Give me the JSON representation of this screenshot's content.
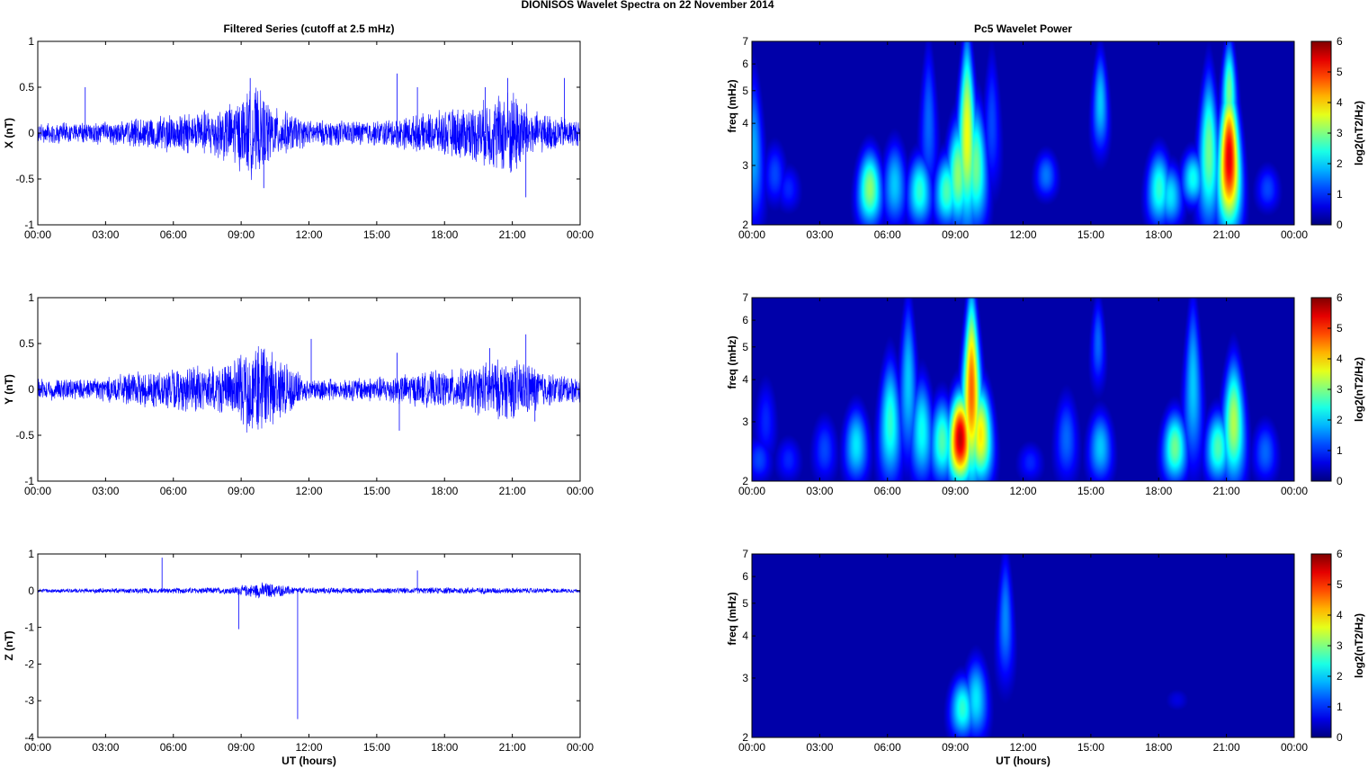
{
  "figure": {
    "title": "DIONISOS Wavelet Spectra on 22 November  2014"
  },
  "colors": {
    "trace": "#0000ff",
    "background": "#00008f",
    "axis": "#000000"
  },
  "chart_data": [
    {
      "type": "line",
      "title": "Filtered Series (cutoff at 2.5 mHz)",
      "xlabel": "",
      "ylabel": "X (nT)",
      "xlim": [
        "00:00",
        "24:00"
      ],
      "ylim": [
        -1,
        1
      ],
      "x_ticks": [
        "00:00",
        "03:00",
        "06:00",
        "09:00",
        "12:00",
        "15:00",
        "18:00",
        "21:00",
        "00:00"
      ],
      "y_ticks": [
        "1",
        "0.5",
        "0",
        "-0.5",
        "-1"
      ],
      "series": [
        {
          "x_unit": "UT hours",
          "baseline_amplitude": 0.1,
          "envelope": [
            {
              "t": 0,
              "amp": 0.12
            },
            {
              "t": 2,
              "amp": 0.12
            },
            {
              "t": 4,
              "amp": 0.15
            },
            {
              "t": 5.5,
              "amp": 0.22
            },
            {
              "t": 7,
              "amp": 0.25
            },
            {
              "t": 8.5,
              "amp": 0.35
            },
            {
              "t": 9.6,
              "amp": 0.55
            },
            {
              "t": 10.5,
              "amp": 0.3
            },
            {
              "t": 12,
              "amp": 0.15
            },
            {
              "t": 15,
              "amp": 0.15
            },
            {
              "t": 17,
              "amp": 0.22
            },
            {
              "t": 19.5,
              "amp": 0.35
            },
            {
              "t": 21,
              "amp": 0.55
            },
            {
              "t": 22,
              "amp": 0.25
            },
            {
              "t": 24,
              "amp": 0.15
            }
          ],
          "spikes": [
            {
              "t": 2.1,
              "y": 0.5
            },
            {
              "t": 9.4,
              "y": 0.6
            },
            {
              "t": 15.9,
              "y": 0.65
            },
            {
              "t": 16.8,
              "y": 0.5
            },
            {
              "t": 19.8,
              "y": 0.5
            },
            {
              "t": 21.6,
              "y": -0.7
            },
            {
              "t": 23.3,
              "y": 0.6
            },
            {
              "t": 10.0,
              "y": -0.6
            },
            {
              "t": 20.8,
              "y": 0.6
            }
          ]
        }
      ]
    },
    {
      "type": "heatmap",
      "title": "Pc5 Wavelet Power",
      "xlabel": "",
      "ylabel": "freq (mHz)",
      "xlim": [
        "00:00",
        "24:00"
      ],
      "ylim": [
        2,
        7
      ],
      "y_scale": "log",
      "x_ticks": [
        "00:00",
        "03:00",
        "06:00",
        "09:00",
        "12:00",
        "15:00",
        "18:00",
        "21:00",
        "00:00"
      ],
      "y_ticks": [
        "7",
        "6",
        "5",
        "4",
        "3",
        "2"
      ],
      "colorbar": {
        "label": "log2(nT2/Hz)",
        "range": [
          0,
          6
        ],
        "ticks": [
          "6",
          "5",
          "4",
          "3",
          "2",
          "1",
          "0"
        ]
      },
      "power_blobs": [
        {
          "t": 0.05,
          "f_bottom": 2,
          "f_top": 5.5,
          "power": 1.8
        },
        {
          "t": 1.0,
          "f_bottom": 2.3,
          "f_top": 3.5,
          "power": 1.2
        },
        {
          "t": 1.6,
          "f_bottom": 2.2,
          "f_top": 3.0,
          "power": 1.0
        },
        {
          "t": 5.2,
          "f_bottom": 2,
          "f_top": 3.3,
          "power": 3.2
        },
        {
          "t": 6.3,
          "f_bottom": 2,
          "f_top": 3.5,
          "power": 2.0
        },
        {
          "t": 7.4,
          "f_bottom": 2,
          "f_top": 3.2,
          "power": 2.6
        },
        {
          "t": 7.8,
          "f_bottom": 2.4,
          "f_top": 6.8,
          "power": 1.4
        },
        {
          "t": 8.6,
          "f_bottom": 2,
          "f_top": 3.2,
          "power": 2.8
        },
        {
          "t": 9.1,
          "f_bottom": 2,
          "f_top": 4.0,
          "power": 3.2
        },
        {
          "t": 9.5,
          "f_bottom": 2,
          "f_top": 7.0,
          "power": 3.8
        },
        {
          "t": 9.9,
          "f_bottom": 2,
          "f_top": 4.5,
          "power": 3.0
        },
        {
          "t": 10.6,
          "f_bottom": 2.5,
          "f_top": 6.5,
          "power": 1.2
        },
        {
          "t": 13.0,
          "f_bottom": 2.4,
          "f_top": 3.3,
          "power": 1.5
        },
        {
          "t": 15.4,
          "f_bottom": 3.3,
          "f_top": 6.5,
          "power": 2.0
        },
        {
          "t": 18.0,
          "f_bottom": 2,
          "f_top": 3.3,
          "power": 2.6
        },
        {
          "t": 18.5,
          "f_bottom": 2,
          "f_top": 3.0,
          "power": 2.2
        },
        {
          "t": 19.5,
          "f_bottom": 2.3,
          "f_top": 3.3,
          "power": 2.4
        },
        {
          "t": 20.2,
          "f_bottom": 2,
          "f_top": 5.5,
          "power": 3.0
        },
        {
          "t": 21.1,
          "f_bottom": 2,
          "f_top": 5.0,
          "power": 5.6
        },
        {
          "t": 21.1,
          "f_bottom": 3.5,
          "f_top": 7.0,
          "power": 3.0
        },
        {
          "t": 22.8,
          "f_bottom": 2.2,
          "f_top": 3.0,
          "power": 1.2
        }
      ]
    },
    {
      "type": "line",
      "title": "",
      "xlabel": "",
      "ylabel": "Y (nT)",
      "xlim": [
        "00:00",
        "24:00"
      ],
      "ylim": [
        -1,
        1
      ],
      "x_ticks": [
        "00:00",
        "03:00",
        "06:00",
        "09:00",
        "12:00",
        "15:00",
        "18:00",
        "21:00",
        "00:00"
      ],
      "y_ticks": [
        "1",
        "0.5",
        "0",
        "-0.5",
        "-1"
      ],
      "series": [
        {
          "x_unit": "UT hours",
          "baseline_amplitude": 0.1,
          "envelope": [
            {
              "t": 0,
              "amp": 0.12
            },
            {
              "t": 3,
              "amp": 0.15
            },
            {
              "t": 5,
              "amp": 0.22
            },
            {
              "t": 7,
              "amp": 0.28
            },
            {
              "t": 8.5,
              "amp": 0.3
            },
            {
              "t": 9.8,
              "amp": 0.62
            },
            {
              "t": 11,
              "amp": 0.3
            },
            {
              "t": 12,
              "amp": 0.12
            },
            {
              "t": 15,
              "amp": 0.15
            },
            {
              "t": 17,
              "amp": 0.2
            },
            {
              "t": 19,
              "amp": 0.25
            },
            {
              "t": 20,
              "amp": 0.35
            },
            {
              "t": 21.5,
              "amp": 0.35
            },
            {
              "t": 22.5,
              "amp": 0.2
            },
            {
              "t": 24,
              "amp": 0.15
            }
          ],
          "spikes": [
            {
              "t": 15.9,
              "y": 0.4
            },
            {
              "t": 16.0,
              "y": -0.45
            },
            {
              "t": 12.1,
              "y": 0.55
            },
            {
              "t": 20.0,
              "y": 0.45
            },
            {
              "t": 21.6,
              "y": 0.6
            },
            {
              "t": 22.0,
              "y": -0.35
            }
          ]
        }
      ]
    },
    {
      "type": "heatmap",
      "title": "",
      "xlabel": "",
      "ylabel": "freq (mHz)",
      "xlim": [
        "00:00",
        "24:00"
      ],
      "ylim": [
        2,
        7
      ],
      "y_scale": "log",
      "x_ticks": [
        "00:00",
        "03:00",
        "06:00",
        "09:00",
        "12:00",
        "15:00",
        "18:00",
        "21:00",
        "00:00"
      ],
      "y_ticks": [
        "7",
        "6",
        "5",
        "4",
        "3",
        "2"
      ],
      "colorbar": {
        "label": "log2(nT2/Hz)",
        "range": [
          0,
          6
        ],
        "ticks": [
          "6",
          "5",
          "4",
          "3",
          "2",
          "1",
          "0"
        ]
      },
      "power_blobs": [
        {
          "t": 0.3,
          "f_bottom": 2,
          "f_top": 2.7,
          "power": 1.2
        },
        {
          "t": 0.6,
          "f_bottom": 2.3,
          "f_top": 4.0,
          "power": 1.0
        },
        {
          "t": 1.6,
          "f_bottom": 2,
          "f_top": 2.7,
          "power": 1.0
        },
        {
          "t": 3.2,
          "f_bottom": 2,
          "f_top": 3.1,
          "power": 1.2
        },
        {
          "t": 4.6,
          "f_bottom": 2,
          "f_top": 3.3,
          "power": 2.2
        },
        {
          "t": 6.1,
          "f_bottom": 2,
          "f_top": 4.5,
          "power": 2.6
        },
        {
          "t": 6.9,
          "f_bottom": 2.3,
          "f_top": 6.8,
          "power": 2.0
        },
        {
          "t": 7.5,
          "f_bottom": 2,
          "f_top": 4.0,
          "power": 2.4
        },
        {
          "t": 8.4,
          "f_bottom": 2,
          "f_top": 3.5,
          "power": 2.8
        },
        {
          "t": 9.2,
          "f_bottom": 2,
          "f_top": 3.6,
          "power": 5.8
        },
        {
          "t": 9.7,
          "f_bottom": 2,
          "f_top": 7.0,
          "power": 4.8
        },
        {
          "t": 10.1,
          "f_bottom": 2,
          "f_top": 3.8,
          "power": 4.0
        },
        {
          "t": 12.3,
          "f_bottom": 2,
          "f_top": 2.6,
          "power": 1.0
        },
        {
          "t": 13.9,
          "f_bottom": 2,
          "f_top": 3.6,
          "power": 1.4
        },
        {
          "t": 15.4,
          "f_bottom": 2,
          "f_top": 3.2,
          "power": 2.0
        },
        {
          "t": 15.3,
          "f_bottom": 3.8,
          "f_top": 7.0,
          "power": 1.4
        },
        {
          "t": 18.7,
          "f_bottom": 2,
          "f_top": 3.2,
          "power": 3.0
        },
        {
          "t": 19.5,
          "f_bottom": 2.2,
          "f_top": 6.8,
          "power": 2.0
        },
        {
          "t": 20.6,
          "f_bottom": 2,
          "f_top": 3.2,
          "power": 2.8
        },
        {
          "t": 21.3,
          "f_bottom": 2,
          "f_top": 4.5,
          "power": 3.4
        },
        {
          "t": 22.7,
          "f_bottom": 2,
          "f_top": 3.0,
          "power": 1.4
        }
      ]
    },
    {
      "type": "line",
      "title": "",
      "xlabel": "UT (hours)",
      "ylabel": "Z (nT)",
      "xlim": [
        "00:00",
        "24:00"
      ],
      "ylim": [
        -4,
        1
      ],
      "x_ticks": [
        "00:00",
        "03:00",
        "06:00",
        "09:00",
        "12:00",
        "15:00",
        "18:00",
        "21:00",
        "00:00"
      ],
      "y_ticks": [
        "1",
        "0",
        "-1",
        "-2",
        "-3",
        "-4"
      ],
      "series": [
        {
          "x_unit": "UT hours",
          "baseline_amplitude": 0.04,
          "envelope": [
            {
              "t": 0,
              "amp": 0.06
            },
            {
              "t": 5,
              "amp": 0.08
            },
            {
              "t": 8.5,
              "amp": 0.1
            },
            {
              "t": 10,
              "amp": 0.25
            },
            {
              "t": 11.5,
              "amp": 0.1
            },
            {
              "t": 15,
              "amp": 0.08
            },
            {
              "t": 19,
              "amp": 0.1
            },
            {
              "t": 24,
              "amp": 0.06
            }
          ],
          "spikes": [
            {
              "t": 5.5,
              "y": 0.9
            },
            {
              "t": 8.9,
              "y": -1.05
            },
            {
              "t": 11.5,
              "y": -3.5
            },
            {
              "t": 16.8,
              "y": 0.55
            }
          ]
        }
      ]
    },
    {
      "type": "heatmap",
      "title": "",
      "xlabel": "UT (hours)",
      "ylabel": "freq (mHz)",
      "xlim": [
        "00:00",
        "24:00"
      ],
      "ylim": [
        2,
        7
      ],
      "y_scale": "log",
      "x_ticks": [
        "00:00",
        "03:00",
        "06:00",
        "09:00",
        "12:00",
        "15:00",
        "18:00",
        "21:00",
        "00:00"
      ],
      "y_ticks": [
        "7",
        "6",
        "5",
        "4",
        "3",
        "2"
      ],
      "colorbar": {
        "label": "log2(nT2/Hz)",
        "range": [
          0,
          6
        ],
        "ticks": [
          "6",
          "5",
          "4",
          "3",
          "2",
          "1",
          "0"
        ]
      },
      "power_blobs": [
        {
          "t": 9.3,
          "f_bottom": 2,
          "f_top": 3.0,
          "power": 2.6
        },
        {
          "t": 9.9,
          "f_bottom": 2,
          "f_top": 3.4,
          "power": 2.2
        },
        {
          "t": 11.2,
          "f_bottom": 2.9,
          "f_top": 7.0,
          "power": 1.6
        },
        {
          "t": 18.8,
          "f_bottom": 2.4,
          "f_top": 2.8,
          "power": 0.6
        }
      ]
    }
  ]
}
